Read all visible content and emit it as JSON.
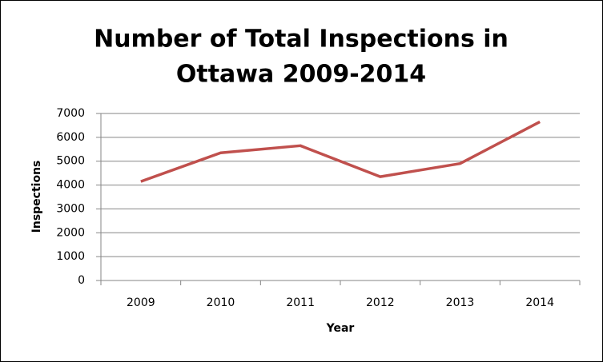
{
  "chart_data": {
    "type": "line",
    "title": [
      "Number of Total Inspections in",
      "Ottawa 2009-2014"
    ],
    "x_label": "Year",
    "y_label": "Inspections",
    "categories": [
      "2009",
      "2010",
      "2011",
      "2012",
      "2013",
      "2014"
    ],
    "series": [
      {
        "name": "Inspections",
        "color": "#c0504d",
        "values": [
          4150,
          5350,
          5650,
          4350,
          4900,
          6650
        ]
      }
    ],
    "ylim": [
      0,
      7000
    ],
    "yticks": [
      0,
      1000,
      2000,
      3000,
      4000,
      5000,
      6000,
      7000
    ],
    "grid": true,
    "legend": false
  }
}
